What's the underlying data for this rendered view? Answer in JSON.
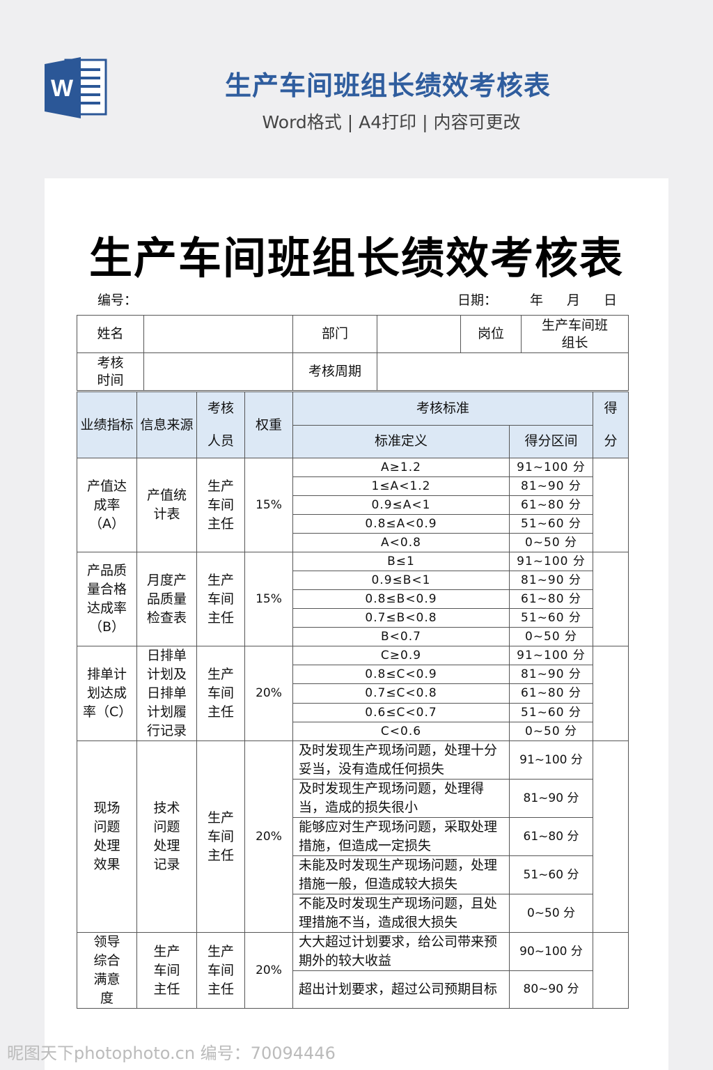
{
  "banner": {
    "title": "生产车间班组长绩效考核表",
    "subtitle": "Word格式 | A4打印 | 内容可更改",
    "icon": "word-document-icon",
    "title_color": "#2f5d9e",
    "icon_color": "#2b5797"
  },
  "doc": {
    "title": "生产车间班组长绩效考核表",
    "number_label": "编号：",
    "date_label": "日期：",
    "year": "年",
    "month": "月",
    "day": "日"
  },
  "info": {
    "name_label": "姓名",
    "dept_label": "部门",
    "position_label": "岗位",
    "position_value": "生产车间班组长",
    "time_label": "考核时间",
    "period_label": "考核周期"
  },
  "header": {
    "indicator": "业绩指标",
    "source": "信息来源",
    "assessor": "考核人员",
    "weight": "权重",
    "standard": "考核标准",
    "definition": "标准定义",
    "range": "得分区间",
    "score": "得分",
    "header_color": "#dce8f5"
  },
  "groups": [
    {
      "indicator": "产值达成率（A）",
      "source": "产值统计表",
      "assessor": "生产车间主任",
      "weight": "15%",
      "rows": [
        [
          "A≥1.2",
          "91~100 分"
        ],
        [
          "1≤A<1.2",
          "81~90 分"
        ],
        [
          "0.9≤A<1",
          "61~80 分"
        ],
        [
          "0.8≤A<0.9",
          "51~60 分"
        ],
        [
          "A<0.8",
          "0~50 分"
        ]
      ]
    },
    {
      "indicator": "产品质量合格达成率（B）",
      "source": "月度产品质量检查表",
      "assessor": "生产车间主任",
      "weight": "15%",
      "rows": [
        [
          "B≤1",
          "91~100 分"
        ],
        [
          "0.9≤B<1",
          "81~90 分"
        ],
        [
          "0.8≤B<0.9",
          "61~80 分"
        ],
        [
          "0.7≤B<0.8",
          "51~60 分"
        ],
        [
          "B<0.7",
          "0~50 分"
        ]
      ]
    },
    {
      "indicator": "排单计划达成率（C）",
      "source": "日排单计划及日排单计划履行记录",
      "assessor": "生产车间主任",
      "weight": "20%",
      "rows": [
        [
          "C≥0.9",
          "91~100 分"
        ],
        [
          "0.8≤C<0.9",
          "81~90 分"
        ],
        [
          "0.7≤C<0.8",
          "61~80 分"
        ],
        [
          "0.6≤C<0.7",
          "51~60 分"
        ],
        [
          "C<0.6",
          "0~50 分"
        ]
      ]
    },
    {
      "indicator": "现场问题处理效果",
      "source": "技术问题处理记录",
      "assessor": "生产车间主任",
      "weight": "20%",
      "text": true,
      "rows": [
        [
          "及时发现生产现场问题，处理十分妥当，没有造成任何损失",
          "91~100 分"
        ],
        [
          "及时发现生产现场问题，处理得当，造成的损失很小",
          "81~90 分"
        ],
        [
          "能够应对生产现场问题，采取处理措施，但造成一定损失",
          "61~80 分"
        ],
        [
          "未能及时发现生产现场问题，处理措施一般，但造成较大损失",
          "51~60 分"
        ],
        [
          "不能及时发现生产现场问题，且处理措施不当，造成很大损失",
          "0~50 分"
        ]
      ]
    },
    {
      "indicator": "领导综合满意度",
      "source": "生产车间主任",
      "assessor": "生产车间主任",
      "weight": "20%",
      "text": true,
      "rows": [
        [
          "大大超过计划要求，给公司带来预期外的较大收益",
          "90~100 分"
        ],
        [
          "超出计划要求，超过公司预期目标",
          "80~90 分"
        ]
      ]
    }
  ],
  "watermark": "昵图天下photophoto.cn 编号：70094446"
}
